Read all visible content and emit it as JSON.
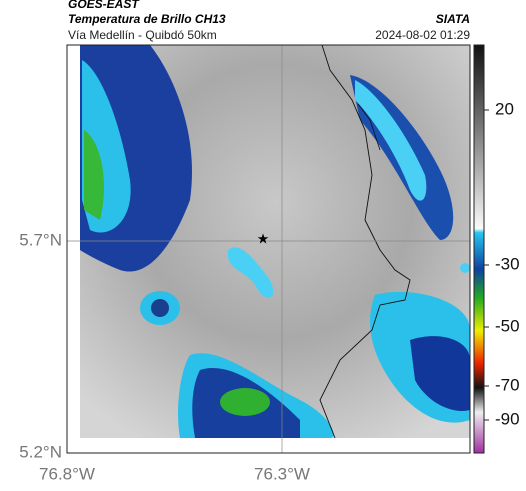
{
  "header": {
    "source": "GOES-EAST",
    "title": "Temperatura de Brillo CH13",
    "org": "SIATA",
    "subtitle": "Vía Medellín - Quibdó 50km",
    "timestamp": "2024-08-02 01:29"
  },
  "map": {
    "lat_labels": [
      "5.7°N",
      "5.2°N"
    ],
    "lon_labels": [
      "76.8°W",
      "76.3°W"
    ]
  },
  "colorbar": {
    "tick_labels": [
      "20",
      "-30",
      "-50",
      "-70",
      "-90"
    ]
  }
}
